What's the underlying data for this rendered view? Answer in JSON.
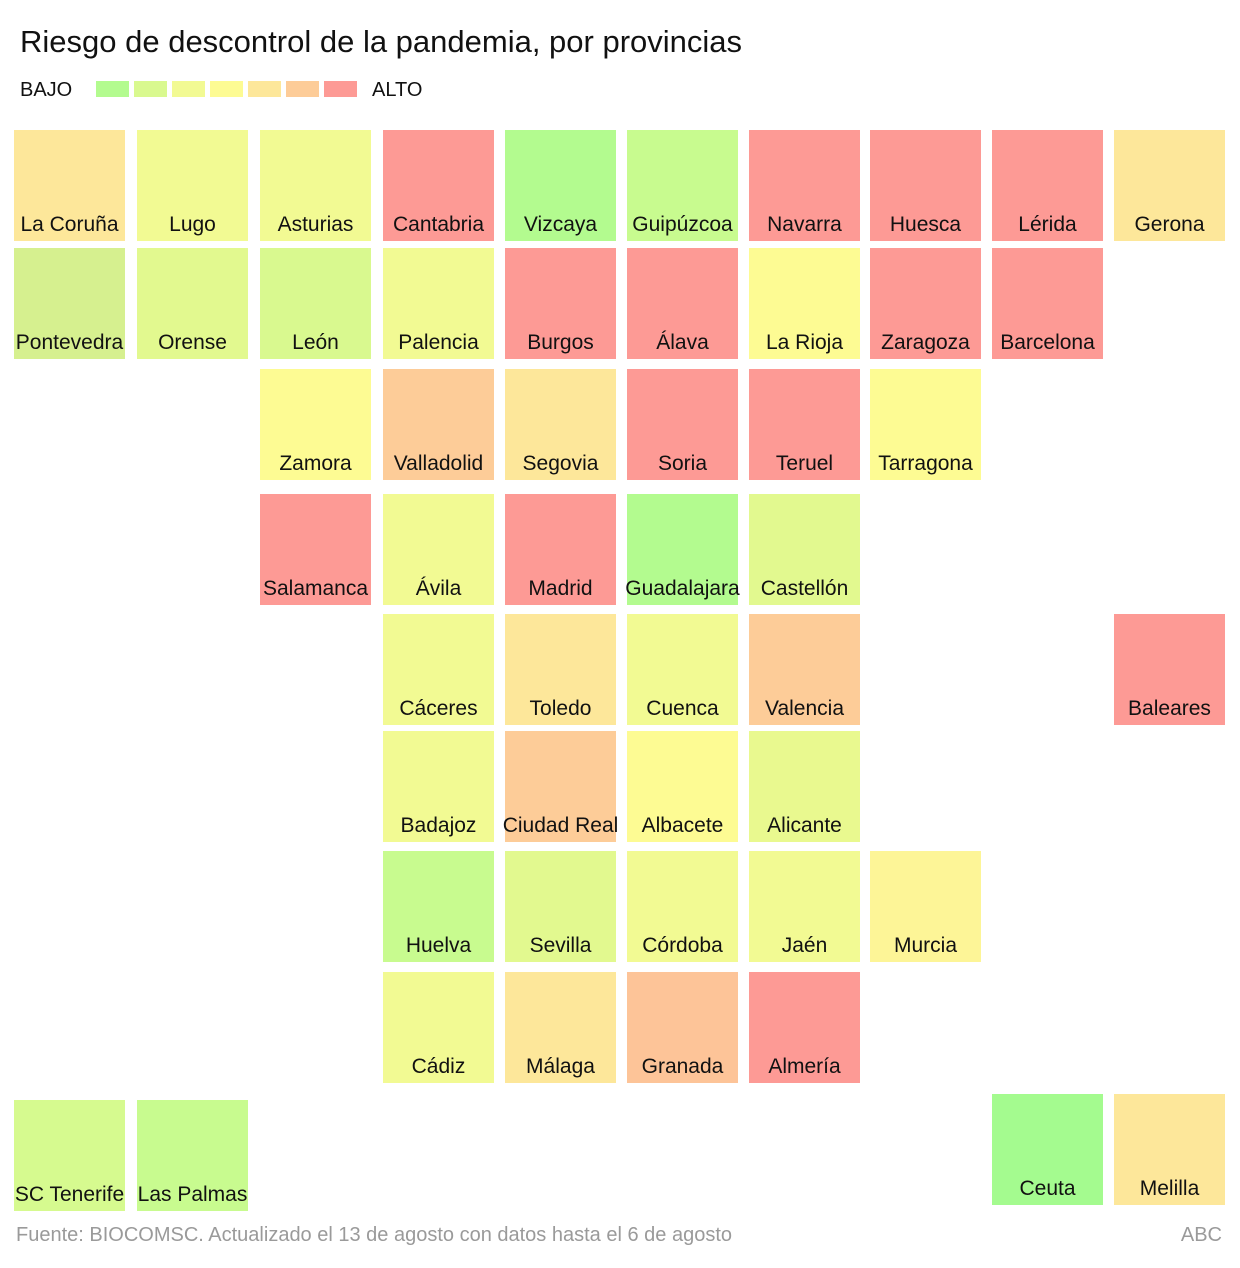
{
  "title": "Riesgo de descontrol de la pandemia, por provincias",
  "legend": {
    "low_label": "BAJO",
    "high_label": "ALTO",
    "scale": [
      "#b3fb8f",
      "#d9f98f",
      "#f2fa93",
      "#fdfb93",
      "#fde79a",
      "#fdcc98",
      "#fd9a95"
    ]
  },
  "provinces": [
    {
      "name": "La Coruña",
      "color": "#fde79a"
    },
    {
      "name": "Lugo",
      "color": "#f2fa93"
    },
    {
      "name": "Asturias",
      "color": "#f2fa93"
    },
    {
      "name": "Cantabria",
      "color": "#fd9a95"
    },
    {
      "name": "Vizcaya",
      "color": "#b3fb8f"
    },
    {
      "name": "Guipúzcoa",
      "color": "#c8fb8f"
    },
    {
      "name": "Navarra",
      "color": "#fd9a95"
    },
    {
      "name": "Huesca",
      "color": "#fd9a95"
    },
    {
      "name": "Lérida",
      "color": "#fd9a95"
    },
    {
      "name": "Gerona",
      "color": "#fde79a"
    },
    {
      "name": "Pontevedra",
      "color": "#d6f08f"
    },
    {
      "name": "Orense",
      "color": "#e2f98f"
    },
    {
      "name": "León",
      "color": "#d9f98f"
    },
    {
      "name": "Palencia",
      "color": "#f2fa93"
    },
    {
      "name": "Burgos",
      "color": "#fd9a95"
    },
    {
      "name": "Álava",
      "color": "#fd9a95"
    },
    {
      "name": "La Rioja",
      "color": "#fdfb93"
    },
    {
      "name": "Zaragoza",
      "color": "#fd9a95"
    },
    {
      "name": "Barcelona",
      "color": "#fd9a95"
    },
    {
      "name": "Zamora",
      "color": "#fdfb93"
    },
    {
      "name": "Valladolid",
      "color": "#fdcc98"
    },
    {
      "name": "Segovia",
      "color": "#fde79a"
    },
    {
      "name": "Soria",
      "color": "#fd9a95"
    },
    {
      "name": "Teruel",
      "color": "#fd9a95"
    },
    {
      "name": "Tarragona",
      "color": "#fdfb93"
    },
    {
      "name": "Salamanca",
      "color": "#fd9a95"
    },
    {
      "name": "Ávila",
      "color": "#f2fa93"
    },
    {
      "name": "Madrid",
      "color": "#fd9a95"
    },
    {
      "name": "Guadalajara",
      "color": "#b3fb8f"
    },
    {
      "name": "Castellón",
      "color": "#e2f98f"
    },
    {
      "name": "Baleares",
      "color": "#fd9a95"
    },
    {
      "name": "Cáceres",
      "color": "#f2fa93"
    },
    {
      "name": "Toledo",
      "color": "#fde79a"
    },
    {
      "name": "Cuenca",
      "color": "#f2fa93"
    },
    {
      "name": "Valencia",
      "color": "#fdcc98"
    },
    {
      "name": "Badajoz",
      "color": "#f2fa93"
    },
    {
      "name": "Ciudad Real",
      "color": "#fdcc98"
    },
    {
      "name": "Albacete",
      "color": "#fdfb93"
    },
    {
      "name": "Alicante",
      "color": "#e9f98f"
    },
    {
      "name": "Huelva",
      "color": "#c8fb8f"
    },
    {
      "name": "Sevilla",
      "color": "#e2f98f"
    },
    {
      "name": "Córdoba",
      "color": "#f2fa93"
    },
    {
      "name": "Jaén",
      "color": "#f2fa93"
    },
    {
      "name": "Murcia",
      "color": "#fdf597"
    },
    {
      "name": "Cádiz",
      "color": "#f2fa93"
    },
    {
      "name": "Málaga",
      "color": "#fde79a"
    },
    {
      "name": "Granada",
      "color": "#fdc498"
    },
    {
      "name": "Almería",
      "color": "#fd9a95"
    },
    {
      "name": "SC Tenerife",
      "color": "#d6fa8f"
    },
    {
      "name": "Las Palmas",
      "color": "#c8fb8f"
    },
    {
      "name": "Ceuta",
      "color": "#a4fb8f"
    },
    {
      "name": "Melilla",
      "color": "#fde79a"
    }
  ],
  "footer": {
    "source": "Fuente: BIOCOMSC. Actualizado el 13 de agosto con datos hasta el 6 de agosto",
    "brand": "ABC"
  }
}
